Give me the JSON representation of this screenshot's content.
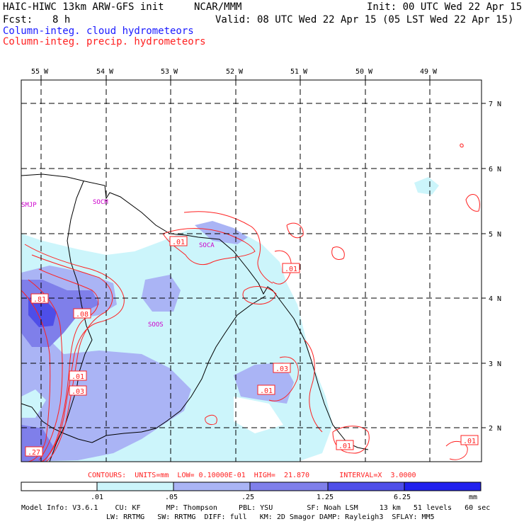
{
  "header": {
    "model_title": "HAIC-HIWC 13km ARW-GFS init",
    "org": "NCAR/MMM",
    "init": "Init: 00 UTC Wed 22 Apr 15",
    "fcst_label": "Fcst:",
    "fcst_value": "8 h",
    "valid": "Valid: 08 UTC Wed 22 Apr 15 (05 LST Wed 22 Apr 15)",
    "legend_cloud": "Column-integ. cloud hydrometeors",
    "legend_precip": "Column-integ. precip. hydrometeors",
    "colors": {
      "cloud": "#1a1aff",
      "precip": "#ff2020"
    }
  },
  "map": {
    "lon_labels": [
      "55 W",
      "54 W",
      "53 W",
      "52 W",
      "51 W",
      "50 W",
      "49 W"
    ],
    "lat_labels": [
      "7 N",
      "6 N",
      "5 N",
      "4 N",
      "3 N",
      "2 N"
    ],
    "stations": [
      "SMJP",
      "SOCM",
      "SOCA",
      "SOOS"
    ],
    "contour_labels": [
      ".01",
      ".01",
      ".81",
      ".08",
      ".01",
      ".03",
      ".03",
      ".01",
      ".27",
      ".01",
      ".01"
    ]
  },
  "footer": {
    "contours": "CONTOURS:  UNITS=mm  LOW= 0.10000E-01  HIGH=  21.870       INTERVAL=X  3.0000",
    "colorbar_ticks": [
      ".01",
      ".05",
      ".25",
      "1.25",
      "6.25",
      "mm"
    ],
    "colorbar_colors": [
      "#ffffff",
      "#ccf5fb",
      "#aab4f5",
      "#7f7fea",
      "#4e4ee8",
      "#2020ee"
    ],
    "model_info_line1": "Model Info: V3.6.1    CU: KF      MP: Thompson     PBL: YSU        SF: Noah LSM     13 km   51 levels   60 sec",
    "model_info_line2": "LW: RRTMG   SW: RRTMG  DIFF: full   KM: 2D Smagor DAMP: Rayleigh3  SFLAY: MM5"
  }
}
